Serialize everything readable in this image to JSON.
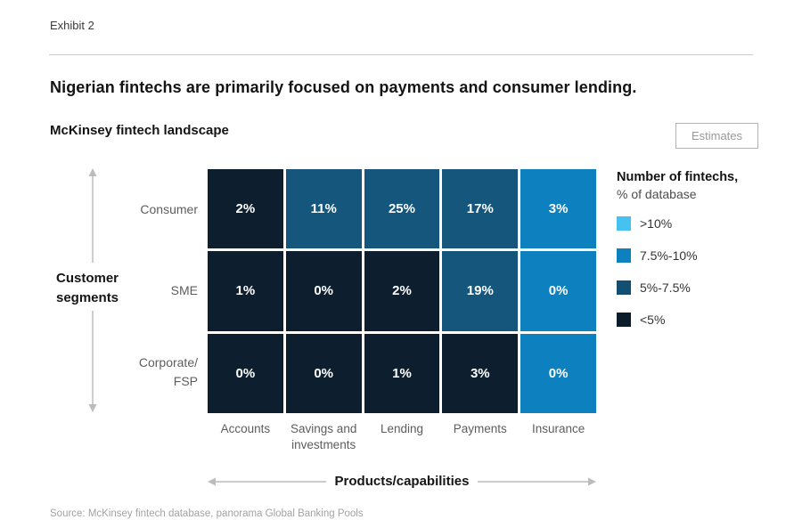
{
  "exhibit": {
    "label": "Exhibit 2"
  },
  "header": {
    "title": "Nigerian fintechs are primarily focused on payments and consumer lending.",
    "subtitle": "McKinsey fintech landscape",
    "estimates_label": "Estimates"
  },
  "axes": {
    "y_title": "Customer\nsegments",
    "x_title": "Products/capabilities"
  },
  "legend": {
    "title": "Number of fintechs,",
    "subtitle": "% of database",
    "items": [
      {
        "label": ">10%",
        "color": "#45c2f0"
      },
      {
        "label": "7.5%-10%",
        "color": "#0d80c0"
      },
      {
        "label": "5%-7.5%",
        "color": "#134f73"
      },
      {
        "label": "<5%",
        "color": "#0b1c2b"
      }
    ]
  },
  "chart_data": {
    "type": "heatmap",
    "title": "McKinsey fintech landscape",
    "xlabel": "Products/capabilities",
    "ylabel": "Customer segments",
    "rows": [
      "Consumer",
      "SME",
      "Corporate/\nFSP"
    ],
    "columns": [
      "Accounts",
      "Savings and investments",
      "Lending",
      "Payments",
      "Insurance"
    ],
    "values_percent_of_database": [
      [
        2,
        11,
        25,
        17,
        3
      ],
      [
        1,
        0,
        2,
        19,
        0
      ],
      [
        0,
        0,
        1,
        3,
        0
      ]
    ],
    "palette": {
      "navy": "#0d1f2e",
      "steel": "#15567d",
      "blue": "#0d80c0",
      "cyan": "#45c2f0"
    },
    "cells": [
      [
        {
          "label": "2%",
          "tone": "navy"
        },
        {
          "label": "11%",
          "tone": "steel"
        },
        {
          "label": "25%",
          "tone": "steel"
        },
        {
          "label": "17%",
          "tone": "steel"
        },
        {
          "label": "3%",
          "tone": "blue"
        }
      ],
      [
        {
          "label": "1%",
          "tone": "navy"
        },
        {
          "label": "0%",
          "tone": "navy"
        },
        {
          "label": "2%",
          "tone": "navy"
        },
        {
          "label": "19%",
          "tone": "steel"
        },
        {
          "label": "0%",
          "tone": "blue"
        }
      ],
      [
        {
          "label": "0%",
          "tone": "navy"
        },
        {
          "label": "0%",
          "tone": "navy"
        },
        {
          "label": "1%",
          "tone": "navy"
        },
        {
          "label": "3%",
          "tone": "navy"
        },
        {
          "label": "0%",
          "tone": "blue"
        }
      ]
    ],
    "legend_position": "right",
    "grid": "white 3px gutters between cells"
  },
  "source": {
    "text": "Source: McKinsey fintech database, panorama Global Banking Pools"
  }
}
